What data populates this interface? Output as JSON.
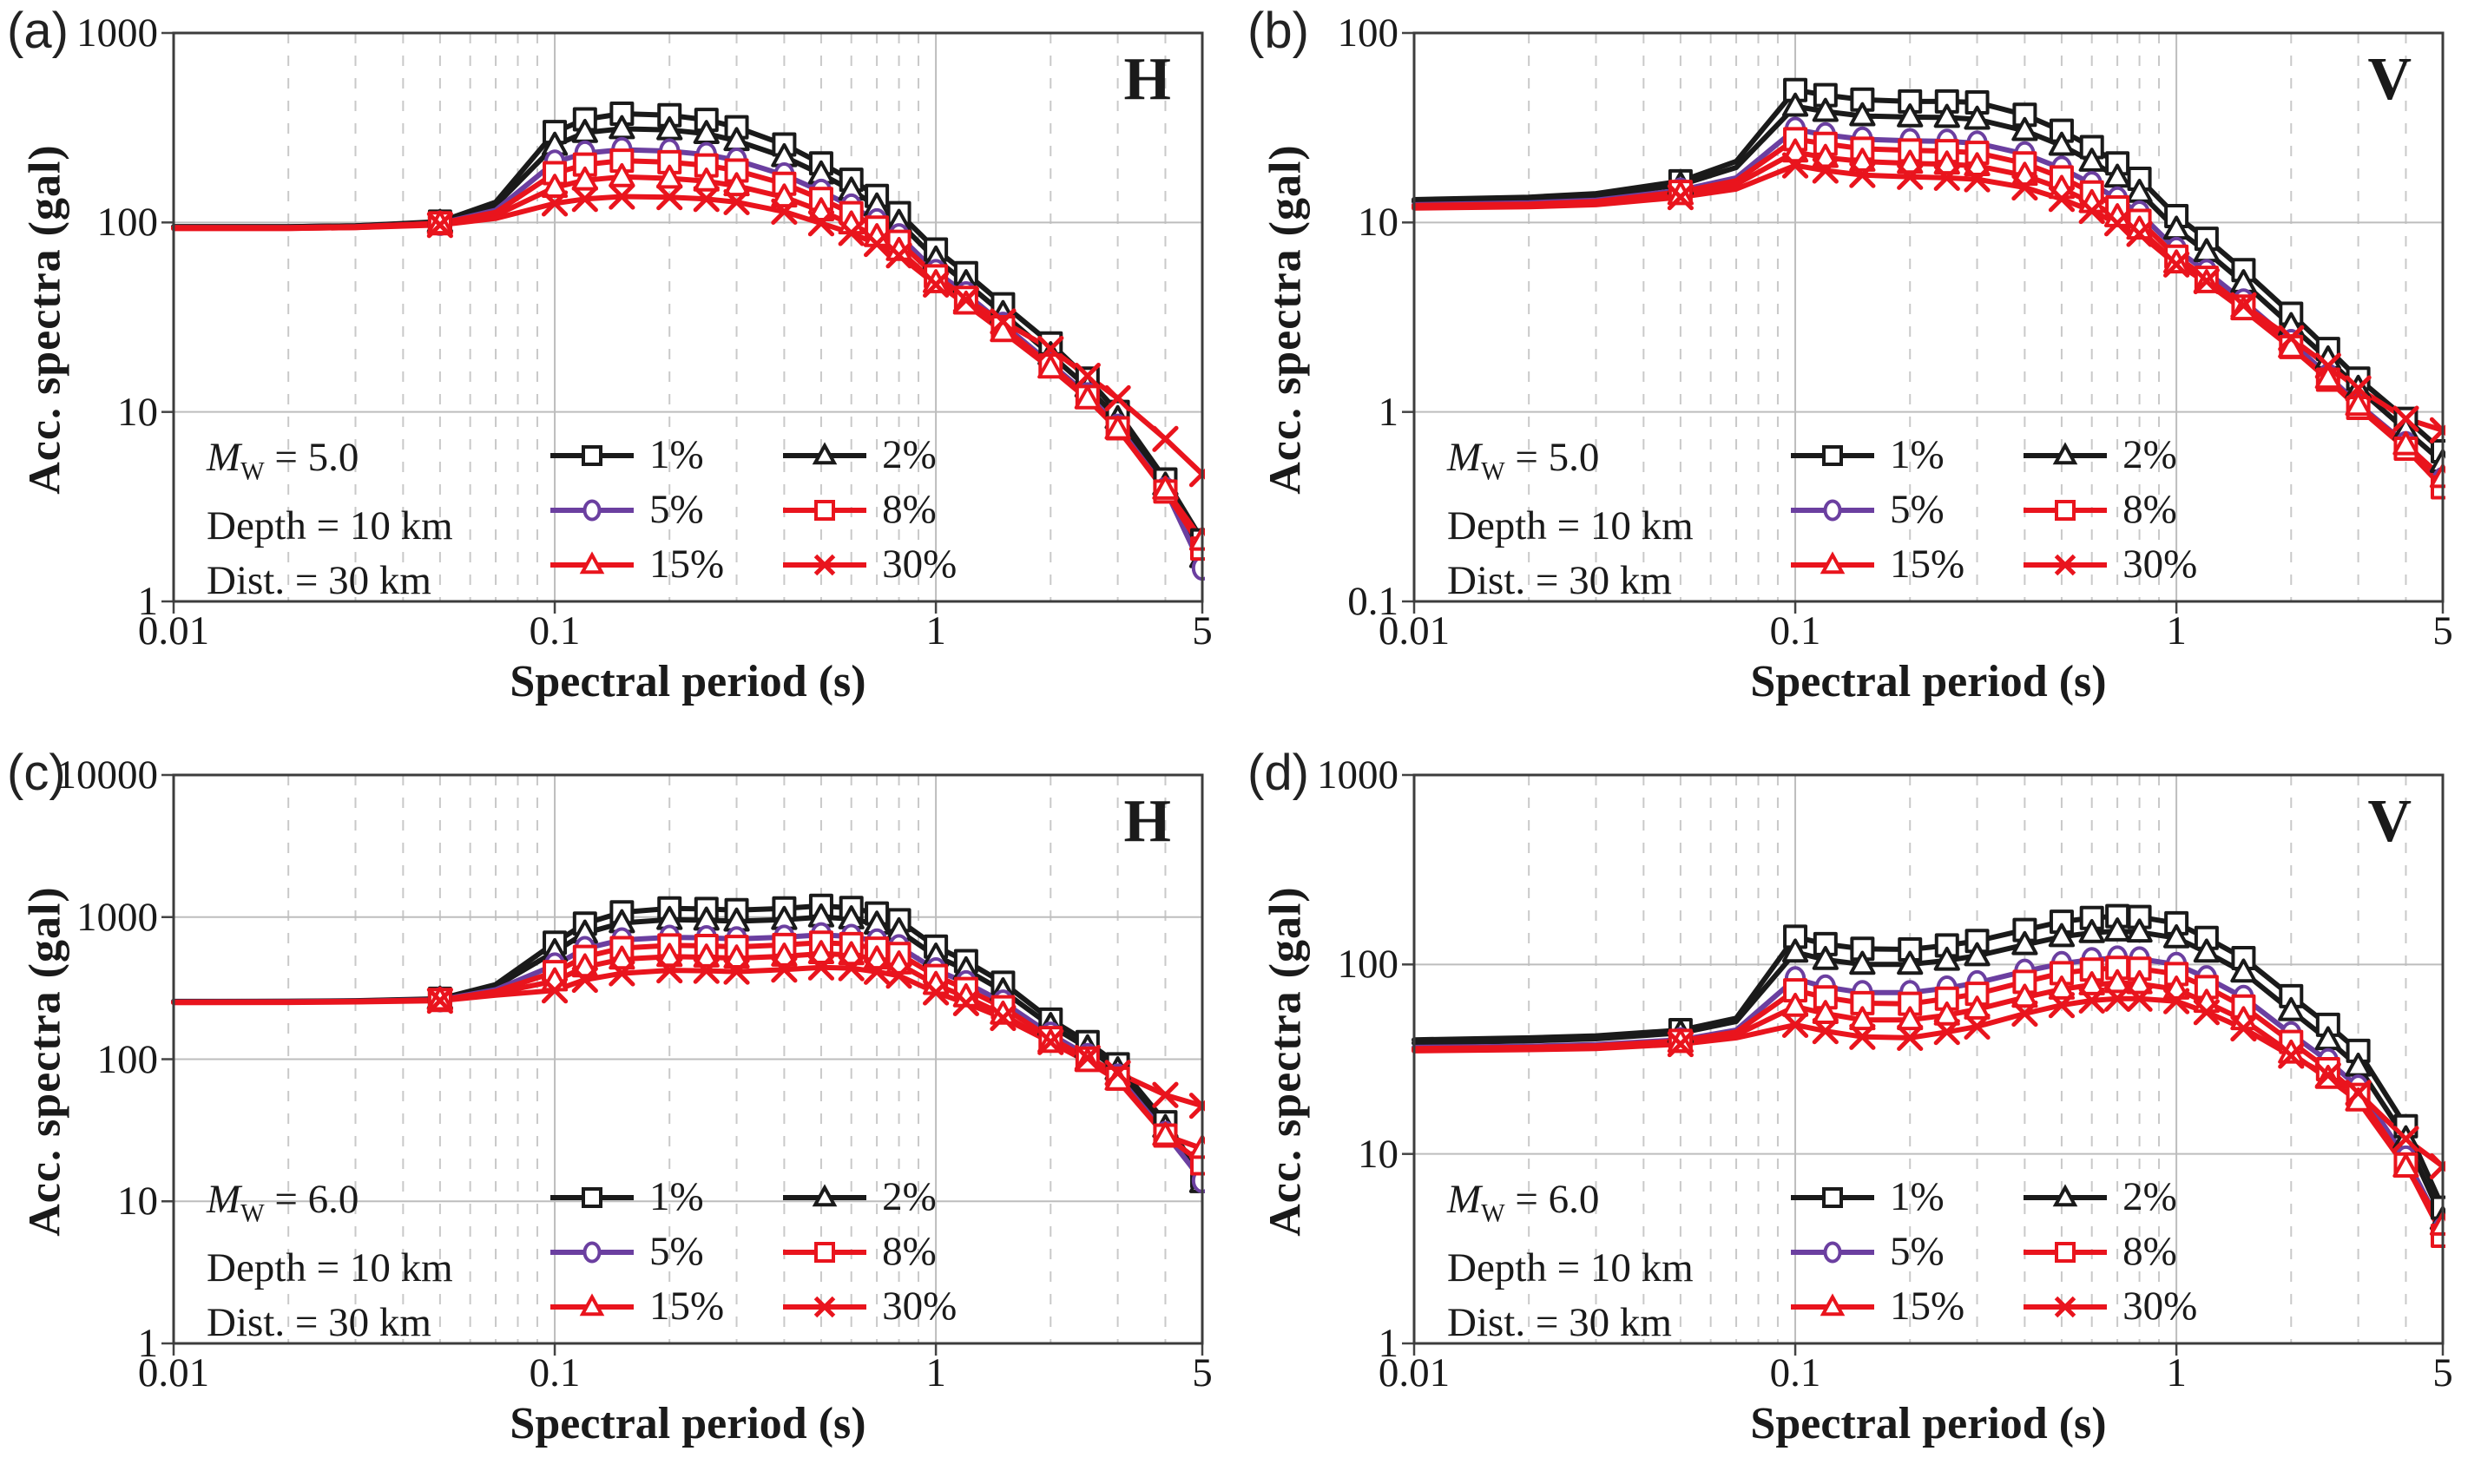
{
  "figure": {
    "ylabel": "Acc. spectra (gal)",
    "xlabel": "Spectral period (s)",
    "mw_letter": "M",
    "mw_sub": "W",
    "legend_labels": [
      "1%",
      "2%",
      "5%",
      "8%",
      "15%",
      "30%"
    ],
    "colors": {
      "black": "#1a1a1a",
      "purple": "#6B3FA0",
      "red": "#E9141D"
    }
  },
  "chart_data": [
    {
      "panel_letter": "(a)",
      "corner_label": "H",
      "type": "line",
      "mw": " = 5.0",
      "depth": "Depth = 10 km",
      "dist": "Dist. = 30 km",
      "xlabel": "Spectral period (s)",
      "ylabel": "Acc. spectra (gal)",
      "xlim": [
        0.01,
        5
      ],
      "ylim": [
        1,
        1000
      ],
      "grid": true,
      "legend_position": "bottom-left",
      "xtick_labels": [
        "0.01",
        "0.1",
        "1",
        "5"
      ],
      "xtick_values": [
        0.01,
        0.1,
        1,
        5
      ],
      "ytick_labels": [
        "1000",
        "100",
        "10",
        "1"
      ],
      "x": [
        0.01,
        0.02,
        0.03,
        0.05,
        0.07,
        0.1,
        0.12,
        0.15,
        0.2,
        0.25,
        0.3,
        0.4,
        0.5,
        0.6,
        0.7,
        0.8,
        1.0,
        1.2,
        1.5,
        2.0,
        2.5,
        3.0,
        4.0,
        5.0
      ],
      "series": [
        {
          "name": "1%",
          "color": "#1a1a1a",
          "marker": "square",
          "values": [
            95,
            95,
            96,
            101,
            128,
            300,
            350,
            375,
            368,
            348,
            318,
            258,
            205,
            168,
            138,
            112,
            72,
            54,
            37,
            23,
            15,
            10,
            4.4,
            2.1
          ]
        },
        {
          "name": "2%",
          "color": "#1a1a1a",
          "marker": "triangle",
          "values": [
            95,
            95,
            96,
            100,
            123,
            255,
            298,
            312,
            308,
            294,
            270,
            222,
            180,
            148,
            122,
            100,
            64,
            48,
            33,
            20,
            13.5,
            9.2,
            4.1,
            1.7
          ]
        },
        {
          "name": "5%",
          "color": "#6B3FA0",
          "marker": "circle",
          "values": [
            94,
            94,
            95,
            99,
            116,
            208,
            232,
            242,
            238,
            228,
            213,
            178,
            146,
            122,
            102,
            85,
            55,
            42,
            29,
            18,
            12.3,
            8.4,
            3.9,
            1.5
          ]
        },
        {
          "name": "8%",
          "color": "#E9141D",
          "marker": "square",
          "values": [
            94,
            94,
            95,
            99,
            113,
            182,
            202,
            212,
            208,
            200,
            188,
            160,
            133,
            112,
            94,
            79,
            52,
            40,
            28,
            17.6,
            12,
            8.2,
            3.8,
            1.9
          ]
        },
        {
          "name": "15%",
          "color": "#E9141D",
          "marker": "triangle",
          "values": [
            93,
            93,
            94,
            98,
            109,
            153,
            167,
            174,
            171,
            165,
            156,
            136,
            115,
            98,
            84,
            71,
            48,
            37,
            26.5,
            17,
            11.7,
            8.1,
            3.9,
            2.1
          ]
        },
        {
          "name": "30%",
          "color": "#E9141D",
          "marker": "x",
          "values": [
            93,
            93,
            94,
            97,
            105,
            126,
            133,
            137,
            136,
            133,
            128,
            114,
            99,
            88,
            77,
            67,
            47,
            39,
            30,
            21.5,
            15.5,
            11.8,
            7.2,
            4.7
          ]
        }
      ]
    },
    {
      "panel_letter": "(b)",
      "corner_label": "V",
      "type": "line",
      "mw": " = 5.0",
      "depth": "Depth = 10 km",
      "dist": "Dist. = 30 km",
      "xlabel": "Spectral period (s)",
      "ylabel": "Acc. spectra (gal)",
      "xlim": [
        0.01,
        5
      ],
      "ylim": [
        0.1,
        100
      ],
      "grid": true,
      "legend_position": "bottom-left",
      "xtick_labels": [
        "0.01",
        "0.1",
        "1",
        "5"
      ],
      "xtick_values": [
        0.01,
        0.1,
        1,
        5
      ],
      "ytick_labels": [
        "100",
        "10",
        "1",
        "0.1"
      ],
      "x": [
        0.01,
        0.02,
        0.03,
        0.05,
        0.07,
        0.1,
        0.12,
        0.15,
        0.2,
        0.25,
        0.3,
        0.4,
        0.5,
        0.6,
        0.7,
        0.8,
        1.0,
        1.2,
        1.5,
        2.0,
        2.5,
        3.0,
        4.0,
        5.0
      ],
      "series": [
        {
          "name": "1%",
          "color": "#1a1a1a",
          "marker": "square",
          "values": [
            13.2,
            13.6,
            14.2,
            16.5,
            21,
            50,
            47,
            44.5,
            43.5,
            43.5,
            43,
            37,
            30.5,
            25,
            20.5,
            17,
            10.8,
            8.2,
            5.6,
            3.3,
            2.15,
            1.5,
            0.92,
            0.62
          ]
        },
        {
          "name": "2%",
          "color": "#1a1a1a",
          "marker": "triangle",
          "values": [
            12.9,
            13.2,
            13.8,
            15.8,
            19.5,
            41,
            38.5,
            36.5,
            36,
            35.8,
            35,
            30.5,
            25.5,
            21,
            17.3,
            14.4,
            9.2,
            7,
            4.8,
            2.85,
            1.9,
            1.33,
            0.8,
            0.54
          ]
        },
        {
          "name": "5%",
          "color": "#6B3FA0",
          "marker": "circle",
          "values": [
            12.4,
            12.7,
            13.1,
            14.8,
            17.2,
            31,
            29,
            27.5,
            27,
            26.8,
            26.2,
            23,
            19.3,
            16,
            13.3,
            11.2,
            7.2,
            5.5,
            3.85,
            2.35,
            1.55,
            1.1,
            0.68,
            0.44
          ]
        },
        {
          "name": "8%",
          "color": "#E9141D",
          "marker": "square",
          "values": [
            12.3,
            12.5,
            12.9,
            14.5,
            16.6,
            27.5,
            26,
            24.5,
            24,
            23.8,
            23.3,
            20.5,
            17.3,
            14.4,
            12,
            10.2,
            6.6,
            5.1,
            3.6,
            2.2,
            1.48,
            1.05,
            0.64,
            0.4
          ]
        },
        {
          "name": "15%",
          "color": "#E9141D",
          "marker": "triangle",
          "values": [
            12.1,
            12.3,
            12.6,
            14,
            15.9,
            23.5,
            22,
            21,
            20.5,
            20.3,
            19.9,
            17.7,
            15.1,
            12.7,
            10.7,
            9.2,
            6.1,
            4.8,
            3.45,
            2.18,
            1.5,
            1.08,
            0.67,
            0.45
          ]
        },
        {
          "name": "30%",
          "color": "#E9141D",
          "marker": "x",
          "values": [
            11.9,
            12.1,
            12.4,
            13.6,
            15,
            20,
            18.8,
            17.8,
            17.4,
            17.2,
            16.9,
            15.3,
            13.3,
            11.5,
            9.9,
            8.7,
            6,
            4.9,
            3.65,
            2.45,
            1.75,
            1.33,
            0.92,
            0.8
          ]
        }
      ]
    },
    {
      "panel_letter": "(c)",
      "corner_label": "H",
      "type": "line",
      "mw": " = 6.0",
      "depth": "Depth = 10 km",
      "dist": "Dist. = 30 km",
      "xlabel": "Spectral period (s)",
      "ylabel": "Acc. spectra (gal)",
      "xlim": [
        0.01,
        5
      ],
      "ylim": [
        1,
        10000
      ],
      "grid": true,
      "legend_position": "bottom-left",
      "xtick_labels": [
        "0.01",
        "0.1",
        "1",
        "5"
      ],
      "xtick_values": [
        0.01,
        0.1,
        1,
        5
      ],
      "ytick_labels": [
        "10000",
        "1000",
        "100",
        "10",
        "1"
      ],
      "x": [
        0.01,
        0.02,
        0.03,
        0.05,
        0.07,
        0.1,
        0.12,
        0.15,
        0.2,
        0.25,
        0.3,
        0.4,
        0.5,
        0.6,
        0.7,
        0.8,
        1.0,
        1.2,
        1.5,
        2.0,
        2.5,
        3.0,
        4.0,
        5.0
      ],
      "series": [
        {
          "name": "1%",
          "color": "#1a1a1a",
          "marker": "square",
          "values": [
            255,
            256,
            258,
            266,
            335,
            660,
            900,
            1080,
            1150,
            1140,
            1120,
            1150,
            1200,
            1160,
            1060,
            950,
            620,
            490,
            345,
            190,
            132,
            92,
            36,
            15
          ]
        },
        {
          "name": "2%",
          "color": "#1a1a1a",
          "marker": "triangle",
          "values": [
            254,
            255,
            257,
            264,
            325,
            570,
            770,
            910,
            960,
            950,
            935,
            960,
            1000,
            970,
            890,
            800,
            530,
            425,
            302,
            172,
            120,
            84,
            33,
            13.5
          ]
        },
        {
          "name": "5%",
          "color": "#6B3FA0",
          "marker": "circle",
          "values": [
            253,
            254,
            256,
            262,
            308,
            460,
            600,
            690,
            720,
            715,
            702,
            722,
            750,
            730,
            678,
            618,
            425,
            345,
            252,
            150,
            106,
            76,
            30,
            14
          ]
        },
        {
          "name": "8%",
          "color": "#E9141D",
          "marker": "square",
          "values": [
            252,
            253,
            255,
            261,
            300,
            410,
            525,
            605,
            632,
            627,
            617,
            637,
            660,
            645,
            600,
            550,
            385,
            312,
            232,
            141,
            101,
            73,
            29,
            18.5
          ]
        },
        {
          "name": "15%",
          "color": "#E9141D",
          "marker": "triangle",
          "values": [
            251,
            252,
            254,
            260,
            292,
            355,
            445,
            505,
            527,
            522,
            514,
            530,
            552,
            542,
            506,
            467,
            335,
            274,
            207,
            131,
            96,
            71,
            29,
            23.5
          ]
        },
        {
          "name": "30%",
          "color": "#E9141D",
          "marker": "x",
          "values": [
            250,
            251,
            253,
            258,
            282,
            305,
            362,
            402,
            422,
            419,
            413,
            427,
            442,
            437,
            412,
            387,
            295,
            248,
            195,
            132,
            102,
            80,
            56,
            47
          ]
        }
      ]
    },
    {
      "panel_letter": "(d)",
      "corner_label": "V",
      "type": "line",
      "mw": " = 6.0",
      "depth": "Depth = 10 km",
      "dist": "Dist. = 30 km",
      "xlabel": "Spectral period (s)",
      "ylabel": "Acc. spectra (gal)",
      "xlim": [
        0.01,
        5
      ],
      "ylim": [
        1,
        1000
      ],
      "grid": true,
      "legend_position": "bottom-left",
      "xtick_labels": [
        "0.01",
        "0.1",
        "1",
        "5"
      ],
      "xtick_values": [
        0.01,
        0.1,
        1,
        5
      ],
      "ytick_labels": [
        "1000",
        "100",
        "10",
        "1"
      ],
      "x": [
        0.01,
        0.02,
        0.03,
        0.05,
        0.07,
        0.1,
        0.12,
        0.15,
        0.2,
        0.25,
        0.3,
        0.4,
        0.5,
        0.6,
        0.7,
        0.8,
        1.0,
        1.2,
        1.5,
        2.0,
        2.5,
        3.0,
        4.0,
        5.0
      ],
      "series": [
        {
          "name": "1%",
          "color": "#1a1a1a",
          "marker": "square",
          "values": [
            40,
            41,
            42,
            45,
            52,
            140,
            128,
            121,
            120,
            126,
            133,
            152,
            168,
            176,
            180,
            178,
            165,
            138,
            108,
            68,
            48,
            35,
            14,
            5.2
          ]
        },
        {
          "name": "2%",
          "color": "#1a1a1a",
          "marker": "triangle",
          "values": [
            38.5,
            39.5,
            40.5,
            43.5,
            50,
            116,
            106,
            100,
            100,
            105,
            111,
            127,
            140,
            147,
            150,
            148,
            138,
            116,
            91,
            57,
            40,
            29,
            12,
            4.5
          ]
        },
        {
          "name": "5%",
          "color": "#6B3FA0",
          "marker": "circle",
          "values": [
            36.5,
            37,
            37.8,
            40,
            45,
            84,
            76,
            71,
            71,
            75,
            80,
            92,
            101,
            106,
            108,
            107,
            100,
            85,
            67,
            43,
            31,
            22.5,
            9.5,
            4.0
          ]
        },
        {
          "name": "8%",
          "color": "#E9141D",
          "marker": "square",
          "values": [
            36,
            36.5,
            37.2,
            39.5,
            44,
            73,
            67,
            62.5,
            62,
            66,
            70,
            81,
            90,
            94,
            96,
            95,
            89,
            76,
            60,
            39,
            28,
            20.5,
            8.8,
            3.7
          ]
        },
        {
          "name": "15%",
          "color": "#E9141D",
          "marker": "triangle",
          "values": [
            35.5,
            36,
            36.6,
            38.8,
            42.5,
            60,
            55,
            51,
            51,
            54,
            58,
            67,
            74,
            78,
            80,
            79,
            74,
            63,
            51,
            34,
            25,
            19,
            8.5,
            4.2
          ]
        },
        {
          "name": "30%",
          "color": "#E9141D",
          "marker": "x",
          "values": [
            35,
            35.5,
            36,
            38,
            41,
            48,
            44.5,
            41.5,
            41,
            44,
            47,
            55,
            61,
            64.5,
            66,
            66,
            64,
            56,
            46,
            33,
            26,
            21,
            12,
            8.6
          ]
        }
      ]
    }
  ]
}
